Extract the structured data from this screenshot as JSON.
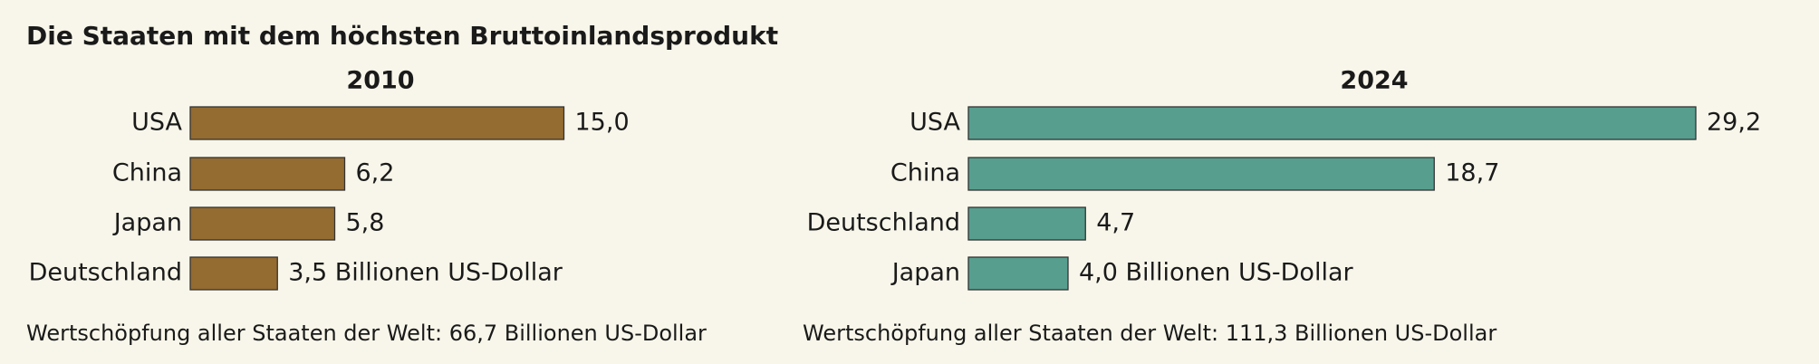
{
  "title": "Die Staaten mit dem höchsten Bruttoinlandsprodukt",
  "chart_data": [
    {
      "type": "bar",
      "orientation": "horizontal",
      "title": "2010",
      "categories": [
        "USA",
        "China",
        "Japan",
        "Deutschland"
      ],
      "values": [
        15.0,
        6.2,
        5.8,
        3.5
      ],
      "value_labels": [
        "15,0",
        "6,2",
        "5,8",
        "3,5 Billionen US-Dollar"
      ],
      "color": "#946b30",
      "xlim": [
        0,
        30
      ],
      "note": "Wertschöpfung aller Staaten der Welt: 66,7 Billionen US-Dollar"
    },
    {
      "type": "bar",
      "orientation": "horizontal",
      "title": "2024",
      "categories": [
        "USA",
        "China",
        "Deutschland",
        "Japan"
      ],
      "values": [
        29.2,
        18.7,
        4.7,
        4.0
      ],
      "value_labels": [
        "29,2",
        "18,7",
        "4,7",
        "4,0 Billionen US-Dollar"
      ],
      "color": "#579e8f",
      "xlim": [
        0,
        30
      ],
      "note": "Wertschöpfung aller Staaten der Welt: 111,3 Billionen US-Dollar"
    }
  ]
}
